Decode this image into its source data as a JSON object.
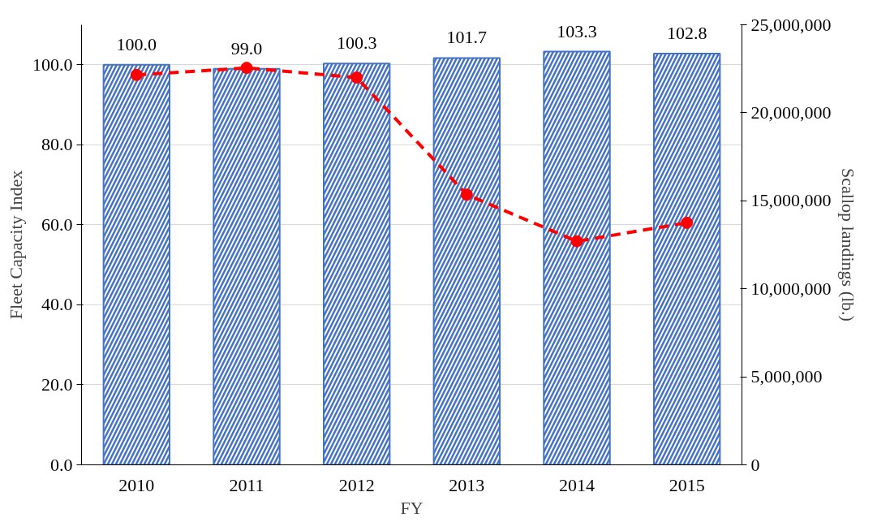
{
  "chart_data": {
    "type": "bar",
    "xlabel": "FY",
    "ylabel": "Fleet Capacity Index",
    "y2label": "Scallop landings (lb.)",
    "categories": [
      "2010",
      "2011",
      "2012",
      "2013",
      "2014",
      "2015"
    ],
    "series": [
      {
        "color": "#4472c4",
        "values": [
          100.0,
          99.0,
          100.3,
          101.7,
          103.3,
          102.8
        ],
        "value_labels": [
          "100.0",
          "99.0",
          "100.3",
          "101.7",
          "103.3",
          "102.8"
        ]
      },
      {
        "type": "line",
        "axis": "y2",
        "color": "#ff0000",
        "marker": "circle",
        "line_style": "dashed",
        "values": [
          22150000,
          22550000,
          22000000,
          15350000,
          12700000,
          13750000
        ]
      }
    ],
    "ylim": [
      0,
      110
    ],
    "yticks": [
      {
        "value": 0,
        "label": "0.0"
      },
      {
        "value": 20,
        "label": "20.0"
      },
      {
        "value": 40,
        "label": "40.0"
      },
      {
        "value": 60,
        "label": "60.0"
      },
      {
        "value": 80,
        "label": "80.0"
      },
      {
        "value": 100,
        "label": "100.0"
      }
    ],
    "y2lim": [
      0,
      25000000
    ],
    "y2ticks": [
      0,
      {
        "value": 5000000,
        "label": "5,000,000"
      },
      {
        "value": 10000000,
        "label": "10,000,000"
      },
      {
        "value": 15000000,
        "label": "15,000,000"
      },
      {
        "value": 20000000,
        "label": "20,000,000"
      },
      {
        "value": 25000000,
        "label": "25,000,000"
      }
    ],
    "grid": "y"
  }
}
